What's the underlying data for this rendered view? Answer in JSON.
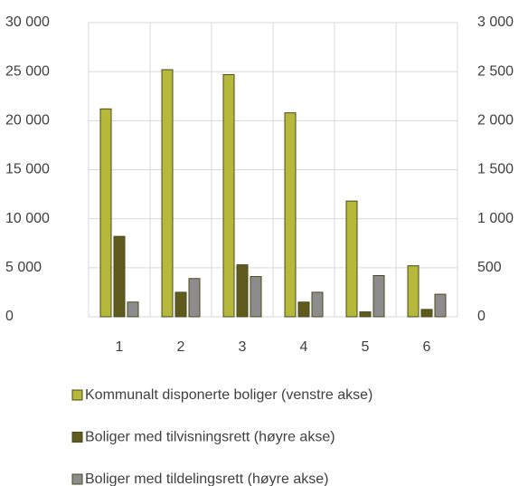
{
  "chart_data": {
    "type": "bar",
    "categories": [
      "1",
      "2",
      "3",
      "4",
      "5",
      "6"
    ],
    "series": [
      {
        "name": "Kommunalt disponerte boliger (venstre akse)",
        "color": "#b5b83a",
        "values": [
          21200,
          25200,
          24700,
          20800,
          11800,
          5200
        ]
      },
      {
        "name": "Boliger med tilvisningsrett (høyre akse)",
        "color": "#5f5a1e",
        "axis": "y2",
        "values": [
          820,
          250,
          530,
          150,
          50,
          75
        ]
      },
      {
        "name": "Boliger med tildelingsrett (høyre akse)",
        "color": "#8c8c8c",
        "axis": "y2",
        "values": [
          150,
          390,
          410,
          250,
          420,
          230
        ]
      }
    ],
    "ylim": [
      0,
      30000
    ],
    "yticks": [
      0,
      {
        "value": 5000,
        "label": "5 000"
      },
      {
        "value": 10000,
        "label": "10 000"
      },
      {
        "value": 15000,
        "label": "15 000"
      },
      {
        "value": 20000,
        "label": "20 000"
      },
      {
        "value": 25000,
        "label": "25 000"
      },
      {
        "value": 30000,
        "label": "30 000"
      }
    ],
    "y2lim": [
      0,
      3000
    ],
    "y2ticks": [
      0,
      500,
      {
        "value": 1000,
        "label": "1 000"
      },
      {
        "value": 1500,
        "label": "1 500"
      },
      {
        "value": 2000,
        "label": "2 000"
      },
      {
        "value": 2500,
        "label": "2 500"
      },
      {
        "value": 3000,
        "label": "3 000"
      }
    ],
    "grid": true,
    "legend": "bottom"
  }
}
